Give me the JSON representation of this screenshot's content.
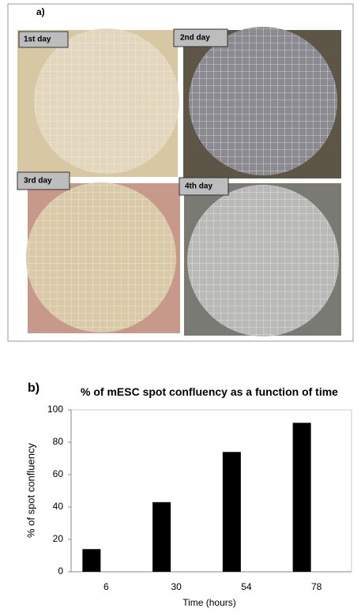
{
  "figure": {
    "panel_a_label": "a)",
    "panel_b_label": "b)",
    "images": [
      {
        "label": "1st day"
      },
      {
        "label": "2nd day"
      },
      {
        "label": "3rd day"
      },
      {
        "label": "4th day"
      }
    ]
  },
  "chart_data": {
    "type": "bar",
    "title": "% of mESC spot confluency as a function of time",
    "x_label": "Time (hours)",
    "y_label": "% of spot confluency",
    "categories": [
      "6",
      "30",
      "54",
      "78"
    ],
    "values": [
      14,
      43,
      74,
      92
    ],
    "color": "#000000",
    "ylim": [
      0,
      100
    ],
    "yticks": [
      0,
      20,
      40,
      60,
      80,
      100
    ],
    "grid": false
  }
}
